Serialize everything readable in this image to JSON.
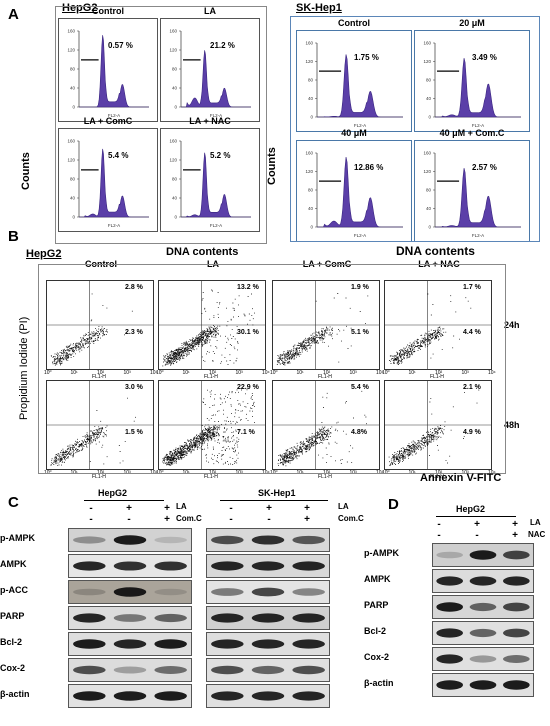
{
  "panelA": {
    "label": "A",
    "hepg2": {
      "title": "HepG2",
      "cells": [
        {
          "name": "Control",
          "pct": "0.57 %"
        },
        {
          "name": "LA",
          "pct": "21.2 %"
        },
        {
          "name": "LA + ComC",
          "pct": "5.4 %"
        },
        {
          "name": "LA + NAC",
          "pct": "5.2 %"
        }
      ],
      "ylabel": "Counts",
      "xlabel": "DNA contents"
    },
    "skhep1": {
      "title": "SK-Hep1",
      "cells": [
        {
          "name": "Control",
          "pct": "1.75 %"
        },
        {
          "name": "20 μM",
          "pct": "3.49 %"
        },
        {
          "name": "40 μM",
          "pct": "12.86 %"
        },
        {
          "name": "40 μM + Com.C",
          "pct": "2.57 %"
        }
      ],
      "ylabel": "Counts",
      "xlabel": "DNA contents"
    }
  },
  "panelB": {
    "label": "B",
    "title": "HepG2",
    "columns": [
      "Control",
      "LA",
      "LA + ComC",
      "LA + NAC"
    ],
    "rows": [
      {
        "time": "24h",
        "upper": [
          "2.8 %",
          "13.2 %",
          "1.9 %",
          "1.7 %"
        ],
        "lower": [
          "2.3 %",
          "30.1 %",
          "5.1 %",
          "4.4 %"
        ]
      },
      {
        "time": "48h",
        "upper": [
          "3.0 %",
          "22.9 %",
          "5.4 %",
          "2.1 %"
        ],
        "lower": [
          "1.5 %",
          "7.1 %",
          "4.8%",
          "4.9 %"
        ]
      }
    ],
    "ylabel": "Propidium Iodide (PI)",
    "xlabel": "Annexin V-FITC"
  },
  "panelC": {
    "label": "C",
    "hepg2": {
      "title": "HepG2"
    },
    "skhep1": {
      "title": "SK-Hep1"
    },
    "treat1": "LA",
    "treat2": "Com.C",
    "signs1": [
      "-",
      "+",
      "+"
    ],
    "signs2": [
      "-",
      "-",
      "+"
    ],
    "proteins": [
      "p-AMPK",
      "AMPK",
      "p-ACC",
      "PARP",
      "Bcl-2",
      "Cox-2",
      "β-actin"
    ]
  },
  "panelD": {
    "label": "D",
    "title": "HepG2",
    "treat1": "LA",
    "treat2": "NAC",
    "signs1": [
      "-",
      "+",
      "+"
    ],
    "signs2": [
      "-",
      "-",
      "+"
    ],
    "proteins": [
      "p-AMPK",
      "AMPK",
      "PARP",
      "Bcl-2",
      "Cox-2",
      "β-actin"
    ]
  },
  "flow_axis": {
    "hist_yticks": [
      "0",
      "40",
      "80",
      "120",
      "160"
    ],
    "hist_xlabel": "FL2-A",
    "dot_xlabel": "FL1-H",
    "dot_ticks": [
      "10⁰",
      "10¹",
      "10²",
      "10³",
      "10⁴"
    ]
  }
}
